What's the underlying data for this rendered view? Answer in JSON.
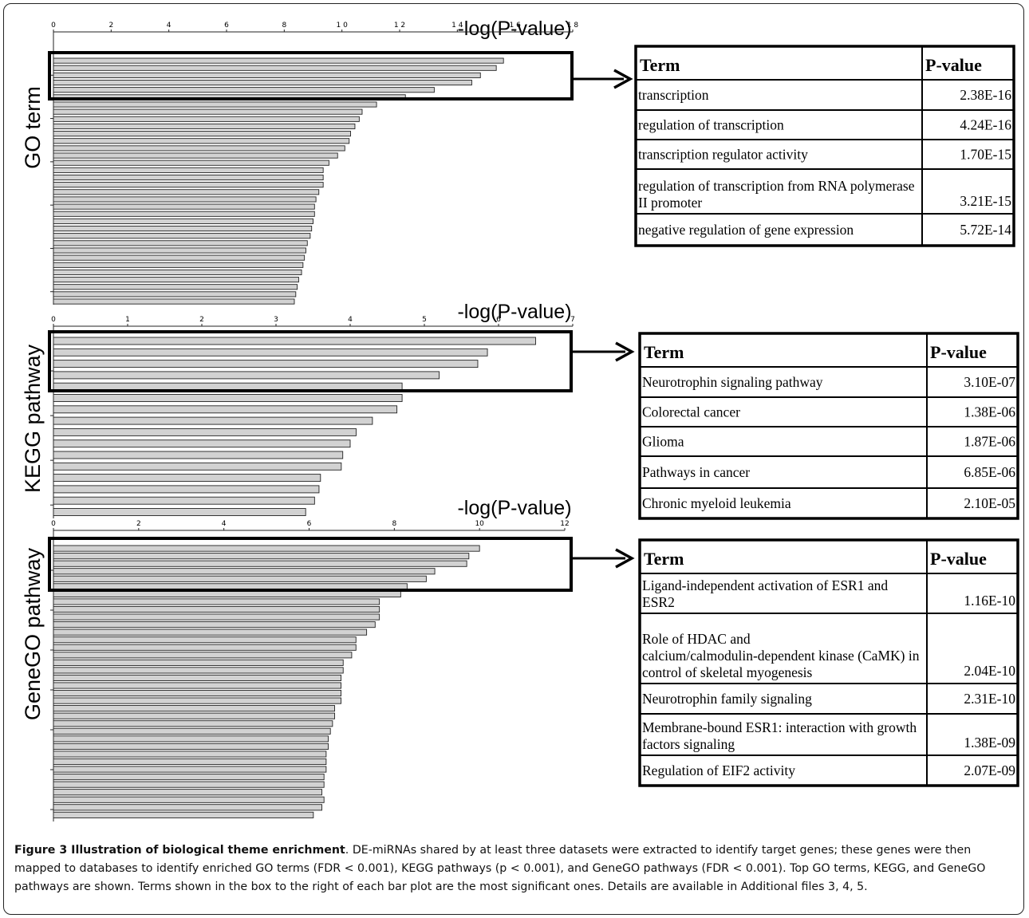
{
  "figure": {
    "caption_label": "Figure 3 Illustration of biological theme enrichment",
    "caption_text": ". DE-miRNAs shared by at least three datasets were extracted to identify target genes; these genes were then mapped to databases to identify enriched GO terms (FDR < 0.001), KEGG pathways (p < 0.001), and GeneGO pathways (FDR < 0.001). Top GO terms, KEGG, and GeneGO pathways are shown. Terms shown in the box to the right of each bar plot are the most significant ones. Details are available in Additional files 3, 4, 5."
  },
  "colors": {
    "bar_fill": "#d2d2d2",
    "bar_stroke": "#222222",
    "box": "#000000"
  },
  "chart_data": [
    {
      "type": "bar",
      "orientation": "horizontal",
      "panel_label": "GO term",
      "title": "-log(P-value)",
      "xlim": [
        0,
        18
      ],
      "xticks": [
        0,
        2,
        4,
        6,
        8,
        10,
        12,
        14,
        16,
        18
      ],
      "xtick_labels": [
        "0",
        "2",
        "4",
        "6",
        "8",
        "1 0",
        "1 2",
        "1 4",
        "1 6",
        "1 8"
      ],
      "highlight_count": 5,
      "values": [
        15.6,
        15.35,
        14.8,
        14.5,
        13.2,
        12.2,
        11.2,
        10.7,
        10.6,
        10.45,
        10.3,
        10.25,
        10.1,
        9.85,
        9.55,
        9.35,
        9.35,
        9.35,
        9.2,
        9.1,
        9.05,
        9.05,
        9.0,
        8.95,
        8.9,
        8.8,
        8.75,
        8.7,
        8.65,
        8.6,
        8.5,
        8.45,
        8.4,
        8.35
      ],
      "table": {
        "headers": [
          "Term",
          "P-value"
        ],
        "rows": [
          [
            "transcription",
            "2.38E-16"
          ],
          [
            "regulation of transcription",
            "4.24E-16"
          ],
          [
            "transcription regulator activity",
            "1.70E-15"
          ],
          [
            "regulation of transcription from RNA polymerase II promoter",
            "3.21E-15"
          ],
          [
            "negative regulation of gene expression",
            "5.72E-14"
          ]
        ]
      }
    },
    {
      "type": "bar",
      "orientation": "horizontal",
      "panel_label": "KEGG pathway",
      "title": "-log(P-value)",
      "xlim": [
        0,
        7
      ],
      "xticks": [
        0,
        1,
        2,
        3,
        4,
        5,
        6,
        7
      ],
      "xtick_labels": [
        "0",
        "1",
        "2",
        "3",
        "4",
        "5",
        "6",
        "7"
      ],
      "highlight_count": 5,
      "values": [
        6.5,
        5.85,
        5.72,
        5.2,
        4.7,
        4.7,
        4.63,
        4.3,
        4.08,
        4.0,
        3.9,
        3.88,
        3.6,
        3.58,
        3.52,
        3.4
      ],
      "table": {
        "headers": [
          "Term",
          "P-value"
        ],
        "rows": [
          [
            "Neurotrophin signaling pathway",
            "3.10E-07"
          ],
          [
            "Colorectal cancer",
            "1.38E-06"
          ],
          [
            "Glioma",
            "1.87E-06"
          ],
          [
            "Pathways in cancer",
            "6.85E-06"
          ],
          [
            "Chronic myeloid leukemia",
            "2.10E-05"
          ]
        ]
      }
    },
    {
      "type": "bar",
      "orientation": "horizontal",
      "panel_label": "GeneGO pathway",
      "title": "-log(P-value)",
      "xlim": [
        0,
        12
      ],
      "xticks": [
        0,
        2,
        4,
        6,
        8,
        10,
        12
      ],
      "xtick_labels": [
        "0",
        "2",
        "4",
        "6",
        "8",
        "10",
        "12"
      ],
      "highlight_count": 5,
      "values": [
        10.0,
        9.75,
        9.7,
        8.95,
        8.75,
        8.3,
        8.15,
        7.65,
        7.65,
        7.65,
        7.55,
        7.35,
        7.1,
        7.1,
        7.0,
        6.8,
        6.8,
        6.75,
        6.75,
        6.75,
        6.75,
        6.6,
        6.6,
        6.55,
        6.5,
        6.45,
        6.45,
        6.4,
        6.4,
        6.4,
        6.35,
        6.35,
        6.3,
        6.35,
        6.3,
        6.1
      ],
      "table": {
        "headers": [
          "Term",
          "P-value"
        ],
        "rows": [
          [
            "Ligand-independent activation of ESR1 and ESR2",
            "1.16E-10"
          ],
          [
            "Role of HDAC and calcium/calmodulin-dependent kinase (CaMK) in control of skeletal myogenesis",
            "2.04E-10"
          ],
          [
            "Neurotrophin family signaling",
            "2.31E-10"
          ],
          [
            "Membrane-bound ESR1: interaction with growth factors signaling",
            "1.38E-09"
          ],
          [
            "Regulation of EIF2 activity",
            "2.07E-09"
          ]
        ]
      }
    }
  ]
}
